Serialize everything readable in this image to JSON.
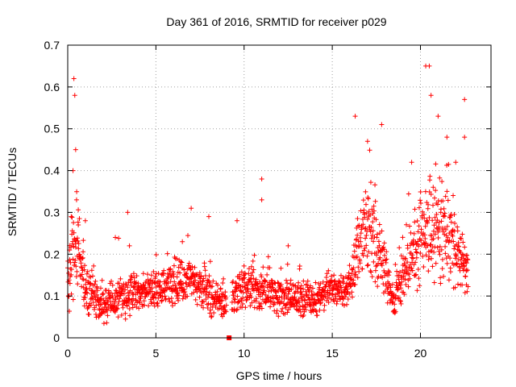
{
  "chart_data": {
    "type": "scatter",
    "title": "Day 361 of 2016, SRMTID for receiver p029",
    "xlabel": "GPS time / hours",
    "ylabel": "SRMTID / TECUs",
    "xlim": [
      0,
      24
    ],
    "ylim": [
      0,
      0.7
    ],
    "xticks": [
      0,
      5,
      10,
      15,
      20
    ],
    "yticks": [
      0,
      0.1,
      0.2,
      0.3,
      0.4,
      0.5,
      0.6,
      0.7
    ],
    "xtick_labels": [
      "0",
      "5",
      "10",
      "15",
      "20"
    ],
    "ytick_labels": [
      "0",
      "0.1",
      "0.2",
      "0.3",
      "0.4",
      "0.5",
      "0.6",
      "0.7"
    ],
    "grid": true,
    "marker": "+",
    "color": "#ff0000",
    "gap_marker": {
      "x": 9.15,
      "y": 0.0
    },
    "sample_points": [
      [
        0.05,
        0.1
      ],
      [
        0.1,
        0.21
      ],
      [
        0.2,
        0.29
      ],
      [
        0.3,
        0.4
      ],
      [
        0.35,
        0.62
      ],
      [
        0.4,
        0.58
      ],
      [
        0.45,
        0.45
      ],
      [
        0.5,
        0.33
      ],
      [
        0.6,
        0.27
      ],
      [
        0.7,
        0.15
      ],
      [
        0.9,
        0.12
      ],
      [
        1.0,
        0.28
      ],
      [
        2.7,
        0.24
      ],
      [
        3.4,
        0.3
      ],
      [
        3.5,
        0.22
      ],
      [
        6.5,
        0.23
      ],
      [
        7.0,
        0.31
      ],
      [
        8.0,
        0.29
      ],
      [
        9.6,
        0.28
      ],
      [
        11.0,
        0.38
      ],
      [
        11.0,
        0.33
      ],
      [
        12.5,
        0.22
      ],
      [
        16.3,
        0.53
      ],
      [
        17.0,
        0.47
      ],
      [
        17.8,
        0.51
      ],
      [
        19.5,
        0.42
      ],
      [
        20.3,
        0.65
      ],
      [
        20.5,
        0.65
      ],
      [
        20.6,
        0.58
      ],
      [
        21.0,
        0.53
      ],
      [
        21.5,
        0.48
      ],
      [
        22.0,
        0.42
      ],
      [
        22.5,
        0.57
      ],
      [
        22.5,
        0.48
      ],
      [
        22.6,
        0.16
      ]
    ],
    "envelope": [
      {
        "t": 0.0,
        "base": 0.12,
        "spread": 0.07
      },
      {
        "t": 0.5,
        "base": 0.25,
        "spread": 0.14
      },
      {
        "t": 1.0,
        "base": 0.12,
        "spread": 0.08
      },
      {
        "t": 2.0,
        "base": 0.08,
        "spread": 0.05
      },
      {
        "t": 3.0,
        "base": 0.1,
        "spread": 0.06
      },
      {
        "t": 5.0,
        "base": 0.11,
        "spread": 0.05
      },
      {
        "t": 7.0,
        "base": 0.14,
        "spread": 0.06
      },
      {
        "t": 8.0,
        "base": 0.1,
        "spread": 0.05
      },
      {
        "t": 9.0,
        "base": 0.08,
        "spread": 0.04
      },
      {
        "t": 10.0,
        "base": 0.12,
        "spread": 0.06
      },
      {
        "t": 12.0,
        "base": 0.1,
        "spread": 0.05
      },
      {
        "t": 14.0,
        "base": 0.09,
        "spread": 0.05
      },
      {
        "t": 15.0,
        "base": 0.12,
        "spread": 0.05
      },
      {
        "t": 16.0,
        "base": 0.12,
        "spread": 0.05
      },
      {
        "t": 16.5,
        "base": 0.24,
        "spread": 0.12
      },
      {
        "t": 17.5,
        "base": 0.22,
        "spread": 0.12
      },
      {
        "t": 18.5,
        "base": 0.09,
        "spread": 0.05
      },
      {
        "t": 19.5,
        "base": 0.2,
        "spread": 0.1
      },
      {
        "t": 20.5,
        "base": 0.27,
        "spread": 0.15
      },
      {
        "t": 21.5,
        "base": 0.26,
        "spread": 0.14
      },
      {
        "t": 22.7,
        "base": 0.15,
        "spread": 0.06
      }
    ]
  }
}
